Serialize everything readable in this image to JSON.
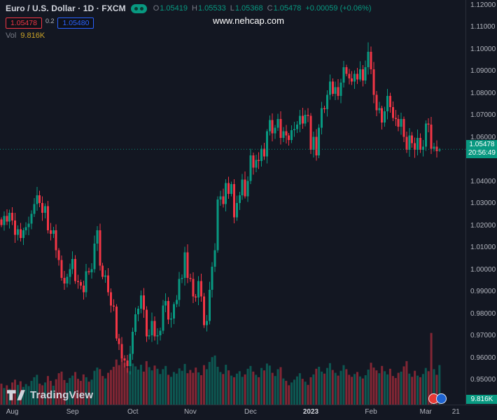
{
  "header": {
    "symbol_title": "Euro / U.S. Dollar · 1D · FXCM",
    "ohlc": {
      "o_label": "O",
      "o_value": "1.05419",
      "h_label": "H",
      "h_value": "1.05533",
      "l_label": "L",
      "l_value": "1.05368",
      "c_label": "C",
      "c_value": "1.05478",
      "change": "+0.00059 (+0.06%)"
    },
    "sell_price": "1.05478",
    "spread": "0.2",
    "buy_price": "1.05480",
    "vol_label": "Vol",
    "vol_value": "9.816K",
    "watermark": "www.nehcap.com"
  },
  "axes": {
    "price_labels": [
      "1.12000",
      "1.11000",
      "1.10000",
      "1.09000",
      "1.08000",
      "1.07000",
      "1.06000",
      "1.04000",
      "1.03000",
      "1.02000",
      "1.01000",
      "1.00000",
      "0.99000",
      "0.98000",
      "0.97000",
      "0.96000",
      "0.95000"
    ],
    "time_ticks": [
      {
        "label": "Aug",
        "i": 4,
        "major": false
      },
      {
        "label": "Sep",
        "i": 26,
        "major": false
      },
      {
        "label": "Oct",
        "i": 48,
        "major": false
      },
      {
        "label": "Nov",
        "i": 69,
        "major": false
      },
      {
        "label": "Dec",
        "i": 91,
        "major": false
      },
      {
        "label": "2023",
        "i": 113,
        "major": true
      },
      {
        "label": "Feb",
        "i": 135,
        "major": false
      },
      {
        "label": "Mar",
        "i": 155,
        "major": false
      },
      {
        "label": "21",
        "i": 166,
        "major": false
      }
    ],
    "last_price": "1.05478",
    "countdown": "20:56:49",
    "volume_badge": "9.816K"
  },
  "footer": {
    "logo_text": "TradingView"
  },
  "colors": {
    "background": "#131722",
    "up": "#089981",
    "down": "#f23645",
    "axis_text": "#b2b5be",
    "axis_line": "#2a2e39",
    "text_bright": "#d1d4dc",
    "muted": "#787b86",
    "sell_red": "#f23645",
    "buy_blue": "#2962ff",
    "vol_value_color": "#c9a227",
    "badge_green": "#089981"
  },
  "chart_data": {
    "type": "candlestick",
    "symbol": "EUR/USD",
    "timeframe": "1D",
    "exchange": "FXCM",
    "title": "Euro / U.S. Dollar · 1D · FXCM",
    "ylim": [
      0.939,
      1.1225
    ],
    "slots": 170,
    "vol_max": 20,
    "first_open": 1.023,
    "peak_index": 134,
    "peak_high": 1.1033,
    "trough_index": 46,
    "trough_low": 0.9535,
    "last_candle": {
      "o": 1.05419,
      "h": 1.05533,
      "l": 1.05368,
      "c": 1.05478
    },
    "closes": [
      1.0205,
      1.0245,
      1.022,
      1.026,
      1.0225,
      1.016,
      1.0185,
      1.0145,
      1.018,
      1.0195,
      1.021,
      1.0255,
      1.03,
      1.034,
      1.0305,
      1.026,
      1.029,
      1.018,
      1.0165,
      1.018,
      1.009,
      1.0045,
      0.9965,
      0.994,
      0.997,
      1.0005,
      1.005,
      0.995,
      0.9945,
      0.993,
      0.99,
      0.9995,
      0.999,
      1.0005,
      1.012,
      1.018,
      1.002,
      0.997,
      0.9975,
      0.99,
      0.984,
      0.9835,
      0.969,
      0.9665,
      0.96,
      0.959,
      0.9565,
      0.962,
      0.972,
      0.98,
      0.9825,
      0.9885,
      0.982,
      0.97,
      0.9705,
      0.977,
      0.97,
      0.9705,
      0.9725,
      0.984,
      0.986,
      0.9775,
      0.978,
      0.9845,
      0.9865,
      0.996,
      0.9965,
      1.008,
      0.9965,
      0.996,
      0.988,
      0.9875,
      0.995,
      0.988,
      0.975,
      0.977,
      0.991,
      1.0015,
      1.009,
      1.032,
      1.0335,
      1.03,
      1.0395,
      1.0345,
      1.039,
      1.024,
      1.0305,
      1.034,
      1.041,
      1.0335,
      1.0405,
      1.052,
      1.0465,
      1.05,
      1.0495,
      1.055,
      1.0515,
      1.063,
      1.068,
      1.062,
      1.0645,
      1.0685,
      1.06,
      1.063,
      1.061,
      1.059,
      1.0635,
      1.064,
      1.066,
      1.07,
      1.0665,
      1.0705,
      1.07,
      1.0545,
      1.0605,
      1.052,
      1.0645,
      1.0735,
      1.073,
      1.0795,
      1.0855,
      1.08,
      1.083,
      1.079,
      1.085,
      1.092,
      1.089,
      1.087,
      1.0855,
      1.089,
      1.0865,
      1.091,
      1.086,
      1.092,
      1.099,
      1.091,
      1.0795,
      1.0725,
      1.0735,
      1.067,
      1.072,
      1.079,
      1.074,
      1.069,
      1.0685,
      1.065,
      1.0685,
      1.0605,
      1.0545,
      1.061,
      1.0575,
      1.0545,
      1.06,
      1.0545,
      1.056,
      1.0665,
      1.066,
      1.055,
      1.056,
      1.054,
      1.05478
    ],
    "volumes": [
      5.2,
      4.1,
      4.8,
      3.9,
      5.5,
      6.2,
      4.9,
      5.8,
      4.4,
      5.1,
      4.6,
      5.9,
      6.8,
      7.4,
      5.2,
      4.8,
      5.5,
      7.1,
      5.9,
      4.7,
      6.3,
      7.8,
      8.2,
      6.1,
      5.4,
      6.6,
      7.2,
      8.1,
      6.4,
      5.9,
      7.5,
      6.8,
      5.7,
      6.2,
      8.4,
      9.2,
      8.8,
      7.1,
      6.5,
      7.9,
      8.6,
      9.4,
      11.2,
      9.8,
      12.5,
      10.4,
      9.1,
      8.3,
      10.2,
      9.5,
      8.7,
      9.9,
      8.2,
      10.8,
      9.3,
      8.5,
      9.7,
      8.9,
      7.6,
      8.8,
      9.6,
      7.4,
      6.9,
      8.1,
      7.7,
      9.0,
      8.4,
      10.1,
      7.8,
      8.6,
      7.9,
      9.2,
      8.0,
      7.3,
      9.8,
      8.8,
      10.6,
      11.8,
      12.2,
      9.4,
      8.1,
      7.6,
      9.9,
      8.5,
      7.2,
      6.8,
      7.7,
      8.3,
      6.9,
      7.5,
      8.9,
      9.6,
      8.2,
      7.4,
      6.8,
      9.1,
      8.5,
      10.2,
      9.7,
      7.9,
      7.1,
      8.8,
      9.3,
      6.5,
      5.9,
      4.8,
      5.5,
      6.2,
      7.0,
      7.8,
      6.4,
      5.7,
      4.9,
      6.8,
      7.5,
      8.9,
      9.4,
      8.2,
      7.7,
      9.1,
      10.3,
      8.6,
      7.9,
      7.2,
      8.4,
      9.8,
      8.8,
      7.4,
      6.9,
      7.6,
      8.1,
      7.0,
      6.5,
      7.3,
      8.7,
      10.4,
      9.2,
      8.5,
      7.8,
      9.6,
      8.3,
      7.5,
      8.9,
      7.1,
      6.6,
      7.9,
      8.2,
      9.5,
      10.8,
      7.7,
      6.9,
      8.4,
      7.2,
      6.8,
      7.6,
      9.1,
      8.3,
      17.8,
      8.8,
      7.4,
      9.816
    ]
  }
}
